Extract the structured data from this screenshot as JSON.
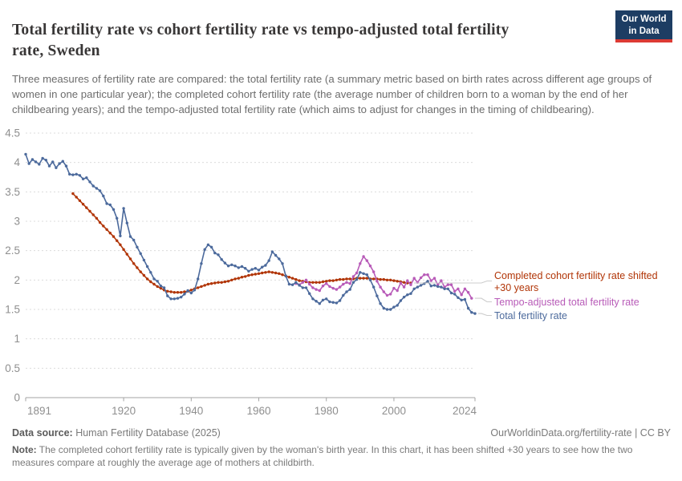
{
  "header": {
    "title": "Total fertility rate vs cohort fertility rate vs tempo-adjusted total fertility rate, Sweden",
    "subtitle": "Three measures of fertility rate are compared: the total fertility rate (a summary metric based on birth rates across different age groups of women in one particular year); the completed cohort fertility rate (the average number of children born to a woman by the end of her childbearing years); and the tempo-adjusted total fertility rate (which aims to adjust for changes in the timing of childbearing).",
    "logo": {
      "line1": "Our World",
      "line2": "in Data",
      "bg_color": "#1D3D63",
      "bar_color": "#DC3A34"
    }
  },
  "chart_data": {
    "type": "line",
    "title": "Total fertility rate vs cohort fertility rate vs tempo-adjusted total fertility rate, Sweden",
    "xlabel": "",
    "ylabel": "",
    "xlim": [
      1891,
      2024
    ],
    "ylim": [
      0,
      4.5
    ],
    "xticks": [
      1891,
      1920,
      1940,
      1960,
      1980,
      2000,
      2024
    ],
    "yticks": [
      0,
      0.5,
      1,
      1.5,
      2,
      2.5,
      3,
      3.5,
      4,
      4.5
    ],
    "grid": "horizontal-dashed",
    "legend_position": "right-of-line-ends",
    "x_step": 1,
    "series": [
      {
        "name": "Completed cohort fertility rate shifted +30 years",
        "color": "#B13507",
        "x_start_year": 1905,
        "x_end_year": 2005,
        "values": [
          3.47,
          3.41,
          3.35,
          3.29,
          3.23,
          3.17,
          3.11,
          3.05,
          2.98,
          2.92,
          2.86,
          2.8,
          2.74,
          2.67,
          2.6,
          2.52,
          2.44,
          2.36,
          2.28,
          2.21,
          2.14,
          2.08,
          2.02,
          1.97,
          1.93,
          1.89,
          1.86,
          1.83,
          1.81,
          1.8,
          1.79,
          1.79,
          1.79,
          1.8,
          1.81,
          1.83,
          1.85,
          1.87,
          1.89,
          1.91,
          1.93,
          1.94,
          1.95,
          1.96,
          1.96,
          1.97,
          1.98,
          2.0,
          2.02,
          2.03,
          2.05,
          2.06,
          2.08,
          2.09,
          2.1,
          2.11,
          2.12,
          2.13,
          2.14,
          2.13,
          2.12,
          2.11,
          2.09,
          2.07,
          2.05,
          2.03,
          2.01,
          1.99,
          1.98,
          1.97,
          1.96,
          1.96,
          1.96,
          1.96,
          1.97,
          1.98,
          1.99,
          1.99,
          2.0,
          2.01,
          2.01,
          2.02,
          2.02,
          2.02,
          2.03,
          2.03,
          2.03,
          2.03,
          2.02,
          2.02,
          2.02,
          2.01,
          2.01,
          2.0,
          2.0,
          1.99,
          1.98,
          1.97,
          1.96,
          1.95,
          1.95
        ]
      },
      {
        "name": "Tempo-adjusted total fertility rate",
        "color": "#B85BB8",
        "x_start_year": 1971,
        "x_end_year": 2023,
        "values": [
          1.94,
          1.92,
          1.96,
          2.0,
          1.93,
          1.87,
          1.84,
          1.82,
          1.9,
          1.94,
          1.89,
          1.86,
          1.84,
          1.88,
          1.93,
          1.96,
          1.94,
          2.06,
          2.12,
          2.28,
          2.4,
          2.33,
          2.24,
          2.14,
          1.98,
          1.88,
          1.8,
          1.74,
          1.76,
          1.86,
          1.82,
          1.95,
          1.88,
          1.99,
          1.92,
          2.03,
          1.96,
          2.04,
          2.09,
          2.09,
          1.99,
          2.03,
          1.92,
          1.99,
          1.88,
          1.92,
          1.92,
          1.81,
          1.85,
          1.75,
          1.85,
          1.79,
          1.69
        ]
      },
      {
        "name": "Total fertility rate",
        "color": "#4C6A9C",
        "x_start_year": 1891,
        "x_end_year": 2024,
        "values": [
          4.14,
          3.98,
          4.05,
          4.01,
          3.97,
          4.07,
          4.04,
          3.94,
          4.01,
          3.91,
          3.98,
          4.02,
          3.94,
          3.8,
          3.79,
          3.8,
          3.78,
          3.72,
          3.74,
          3.67,
          3.6,
          3.56,
          3.52,
          3.43,
          3.3,
          3.28,
          3.2,
          3.05,
          2.75,
          3.22,
          2.97,
          2.74,
          2.68,
          2.56,
          2.45,
          2.34,
          2.23,
          2.13,
          2.02,
          1.98,
          1.9,
          1.87,
          1.73,
          1.68,
          1.68,
          1.69,
          1.71,
          1.76,
          1.82,
          1.78,
          1.83,
          2.02,
          2.28,
          2.52,
          2.6,
          2.56,
          2.46,
          2.43,
          2.35,
          2.29,
          2.24,
          2.26,
          2.24,
          2.21,
          2.23,
          2.2,
          2.15,
          2.18,
          2.2,
          2.17,
          2.22,
          2.25,
          2.33,
          2.48,
          2.42,
          2.36,
          2.28,
          2.07,
          1.93,
          1.92,
          1.96,
          1.91,
          1.87,
          1.87,
          1.77,
          1.68,
          1.64,
          1.6,
          1.66,
          1.68,
          1.63,
          1.62,
          1.61,
          1.65,
          1.74,
          1.8,
          1.84,
          1.96,
          2.01,
          2.13,
          2.11,
          2.09,
          2.0,
          1.88,
          1.73,
          1.6,
          1.52,
          1.5,
          1.5,
          1.54,
          1.57,
          1.65,
          1.71,
          1.75,
          1.77,
          1.85,
          1.88,
          1.91,
          1.94,
          1.98,
          1.9,
          1.91,
          1.89,
          1.88,
          1.85,
          1.85,
          1.78,
          1.76,
          1.7,
          1.66,
          1.67,
          1.52,
          1.45,
          1.43
        ]
      }
    ]
  },
  "footer": {
    "datasource_label": "Data source:",
    "datasource_text": " Human Fertility Database (2025)",
    "link": "OurWorldinData.org/fertility-rate | CC BY",
    "note_label": "Note:",
    "note_text": " The completed cohort fertility rate is typically given by the woman's birth year. In this chart, it has been shifted +30 years to see how the two measures compare at roughly the average age of mothers at childbirth."
  }
}
